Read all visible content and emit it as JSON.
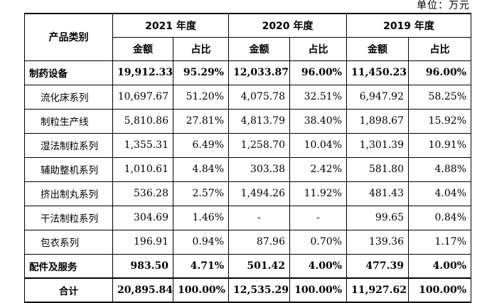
{
  "unit_text": "单位：万元",
  "header": {
    "category": "产品类别",
    "years": [
      "2021 年度",
      "2020 年度",
      "2019 年度"
    ],
    "amount": "金额",
    "ratio": "占比"
  },
  "rows": [
    {
      "label": "制药设备",
      "kind": "main",
      "cells": [
        "19,912.33",
        "95.29%",
        "12,033.87",
        "96.00%",
        "11,450.23",
        "96.00%"
      ]
    },
    {
      "label": "流化床系列",
      "kind": "sub",
      "cells": [
        "10,697.67",
        "51.20%",
        "4,075.78",
        "32.51%",
        "6,947.92",
        "58.25%"
      ]
    },
    {
      "label": "制粒生产线",
      "kind": "sub",
      "cells": [
        "5,810.86",
        "27.81%",
        "4,813.79",
        "38.40%",
        "1,898.67",
        "15.92%"
      ]
    },
    {
      "label": "湿法制粒系列",
      "kind": "sub",
      "cells": [
        "1,355.31",
        "6.49%",
        "1,258.70",
        "10.04%",
        "1,301.39",
        "10.91%"
      ]
    },
    {
      "label": "辅助整机系列",
      "kind": "sub",
      "cells": [
        "1,010.61",
        "4.84%",
        "303.38",
        "2.42%",
        "581.80",
        "4.88%"
      ]
    },
    {
      "label": "挤出制丸系列",
      "kind": "sub",
      "cells": [
        "536.28",
        "2.57%",
        "1,494.26",
        "11.92%",
        "481.43",
        "4.04%"
      ]
    },
    {
      "label": "干法制粒系列",
      "kind": "sub",
      "cells": [
        "304.69",
        "1.46%",
        "-",
        "-",
        "99.65",
        "0.84%"
      ]
    },
    {
      "label": "包衣系列",
      "kind": "sub",
      "cells": [
        "196.91",
        "0.94%",
        "87.96",
        "0.70%",
        "139.36",
        "1.17%"
      ]
    },
    {
      "label": "配件及服务",
      "kind": "main",
      "cells": [
        "983.50",
        "4.71%",
        "501.42",
        "4.00%",
        "477.39",
        "4.00%"
      ]
    },
    {
      "label": "合计",
      "kind": "total",
      "cells": [
        "20,895.84",
        "100.00%",
        "12,535.29",
        "100.00%",
        "11,927.62",
        "100.00%"
      ]
    }
  ]
}
